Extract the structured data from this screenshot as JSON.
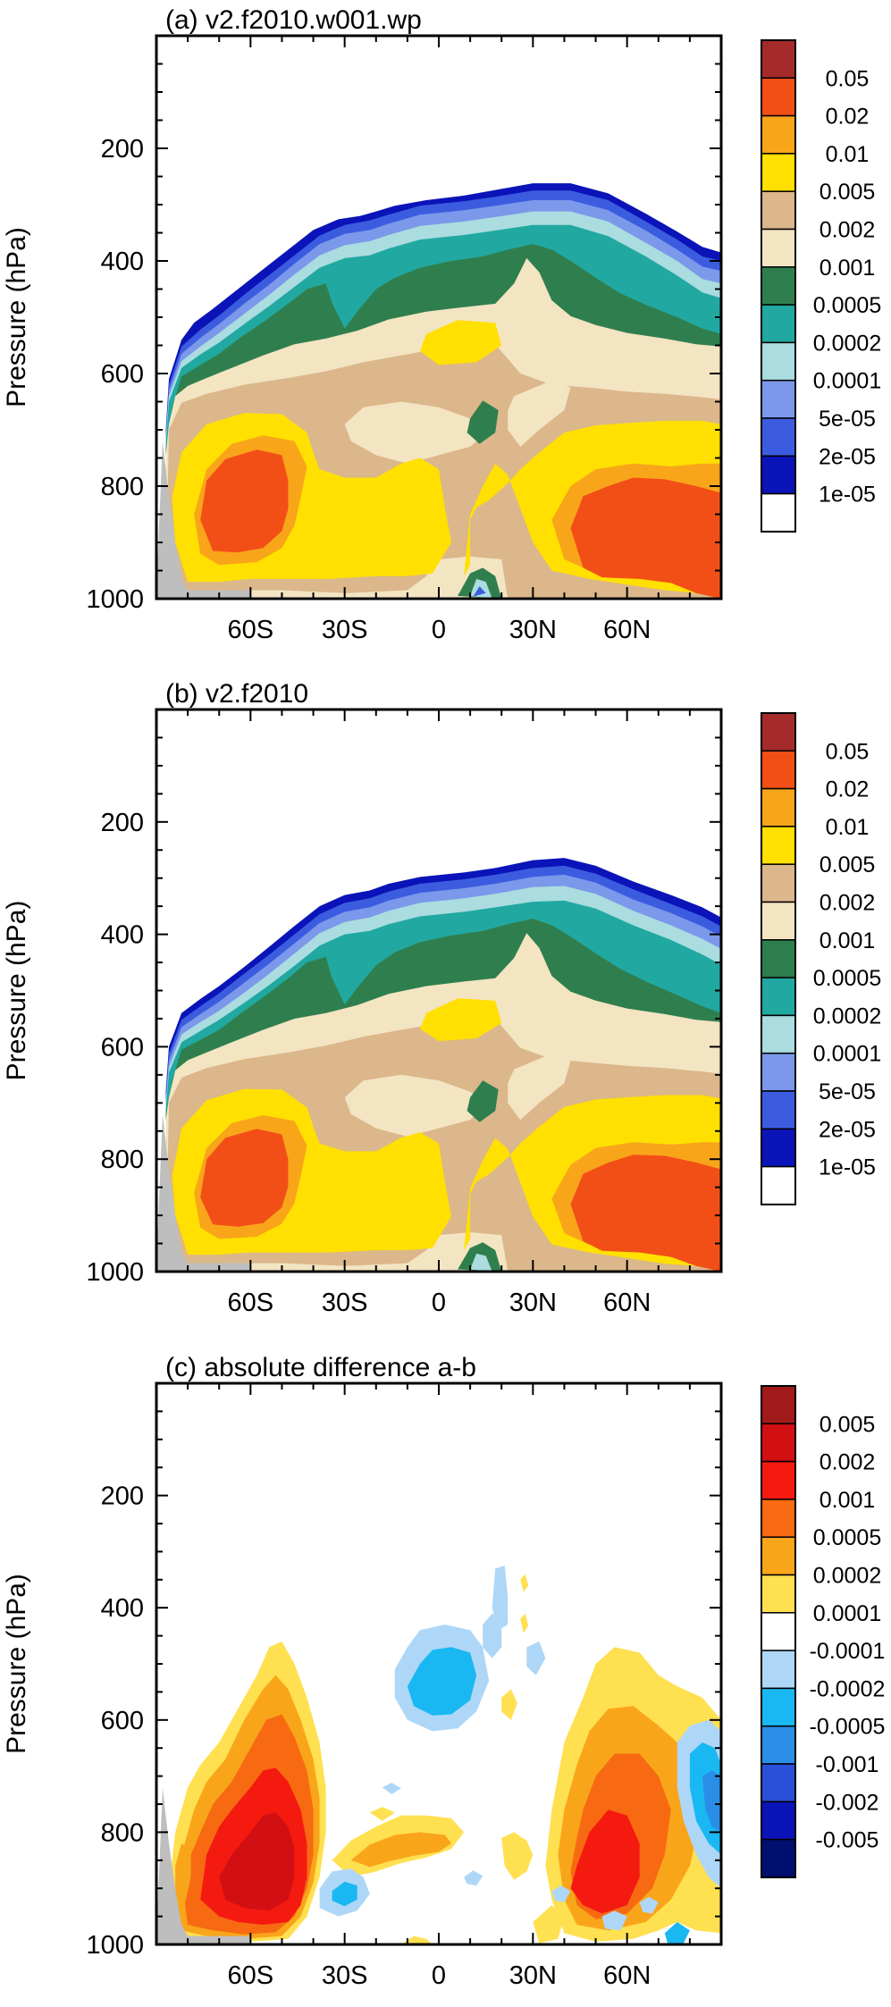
{
  "chart_data": [
    {
      "type": "heatmap",
      "title": "(a) v2.f2010.w001.wp",
      "ylabel": "Pressure (hPa)",
      "xlim": [
        -90,
        90
      ],
      "ylim": [
        1000,
        0
      ],
      "xticks": [
        -60,
        -30,
        0,
        30,
        60
      ],
      "xtick_labels": [
        "60S",
        "30S",
        "0",
        "30N",
        "60N"
      ],
      "yticks": [
        200,
        400,
        600,
        800,
        1000
      ],
      "ytick_labels": [
        "200",
        "400",
        "600",
        "800",
        "1000"
      ],
      "legend": "right colorbar",
      "colorbar_levels": [
        "0.05",
        "0.02",
        "0.01",
        "0.005",
        "0.002",
        "0.001",
        "0.0005",
        "0.0002",
        "0.0001",
        "5e-05",
        "2e-05",
        "1e-05"
      ],
      "colorbar_colors": [
        "#a52a2a",
        "#f24f17",
        "#f9a51a",
        "#ffe000",
        "#dbb78b",
        "#f3e4c2",
        "#2f7f4e",
        "#21a8a0",
        "#aadce0",
        "#7b98ea",
        "#3c5ce0",
        "#0a14b8",
        "#ffffff"
      ]
    },
    {
      "type": "heatmap",
      "title": "(b) v2.f2010",
      "ylabel": "Pressure (hPa)",
      "xlim": [
        -90,
        90
      ],
      "ylim": [
        1000,
        0
      ],
      "xticks": [
        -60,
        -30,
        0,
        30,
        60
      ],
      "xtick_labels": [
        "60S",
        "30S",
        "0",
        "30N",
        "60N"
      ],
      "yticks": [
        200,
        400,
        600,
        800,
        1000
      ],
      "ytick_labels": [
        "200",
        "400",
        "600",
        "800",
        "1000"
      ],
      "legend": "right colorbar",
      "colorbar_levels": [
        "0.05",
        "0.02",
        "0.01",
        "0.005",
        "0.002",
        "0.001",
        "0.0005",
        "0.0002",
        "0.0001",
        "5e-05",
        "2e-05",
        "1e-05"
      ],
      "colorbar_colors": [
        "#a52a2a",
        "#f24f17",
        "#f9a51a",
        "#ffe000",
        "#dbb78b",
        "#f3e4c2",
        "#2f7f4e",
        "#21a8a0",
        "#aadce0",
        "#7b98ea",
        "#3c5ce0",
        "#0a14b8",
        "#ffffff"
      ]
    },
    {
      "type": "heatmap",
      "title": "(c) absolute difference a-b",
      "ylabel": "Pressure (hPa)",
      "xlim": [
        -90,
        90
      ],
      "ylim": [
        1000,
        0
      ],
      "xticks": [
        -60,
        -30,
        0,
        30,
        60
      ],
      "xtick_labels": [
        "60S",
        "30S",
        "0",
        "30N",
        "60N"
      ],
      "yticks": [
        200,
        400,
        600,
        800,
        1000
      ],
      "ytick_labels": [
        "200",
        "400",
        "600",
        "800",
        "1000"
      ],
      "legend": "right colorbar",
      "colorbar_levels": [
        "0.005",
        "0.002",
        "0.001",
        "0.0005",
        "0.0002",
        "0.0001",
        "-0.0001",
        "-0.0002",
        "-0.0005",
        "-0.001",
        "-0.002",
        "-0.005"
      ],
      "colorbar_colors": [
        "#a01a1a",
        "#d20f12",
        "#f51a10",
        "#f76a12",
        "#f9a51a",
        "#ffe050",
        "#ffffff",
        "#aed7f7",
        "#1ab8f2",
        "#2a8ee6",
        "#2a4fd8",
        "#0a14b8",
        "#001070"
      ]
    }
  ]
}
